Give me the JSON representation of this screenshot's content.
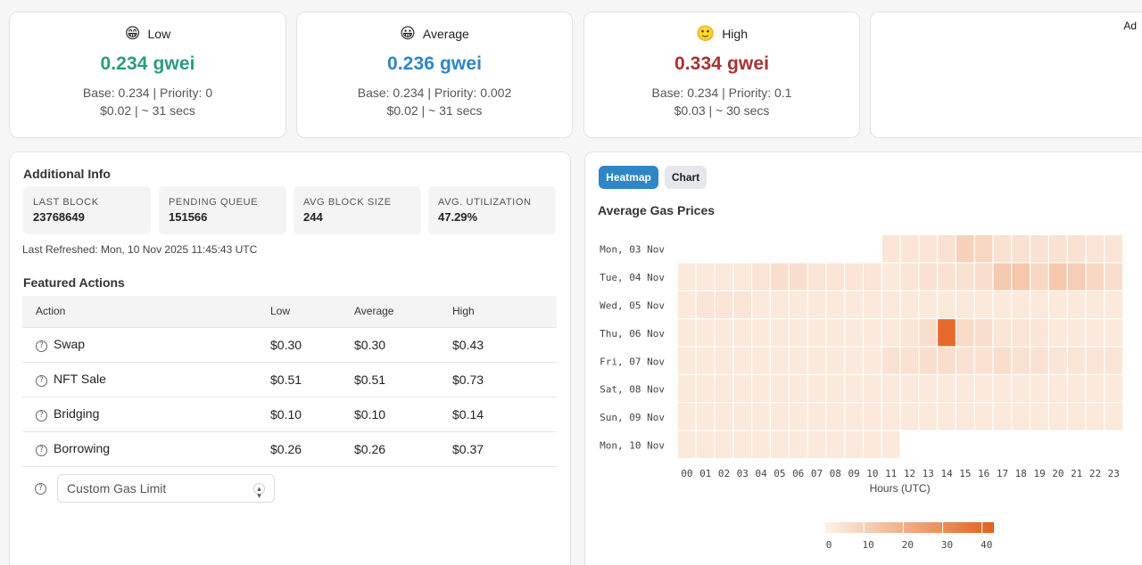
{
  "ad_label": "Ad",
  "gas_cards": [
    {
      "emoji": "😁",
      "label": "Low",
      "price": "0.234 gwei",
      "color": "#2a9c7c",
      "base_priority": "Base: 0.234 | Priority: 0",
      "cost_time": "$0.02 | ~ 31 secs"
    },
    {
      "emoji": "😀",
      "label": "Average",
      "price": "0.236 gwei",
      "color": "#2f86c6",
      "base_priority": "Base: 0.234 | Priority: 0.002",
      "cost_time": "$0.02 | ~ 31 secs"
    },
    {
      "emoji": "🙂",
      "label": "High",
      "price": "0.334 gwei",
      "color": "#a83232",
      "base_priority": "Base: 0.234 | Priority: 0.1",
      "cost_time": "$0.03 | ~ 30 secs"
    }
  ],
  "additional_info": {
    "title": "Additional Info",
    "stats": [
      {
        "label": "Last Block",
        "value": "23768649"
      },
      {
        "label": "Pending Queue",
        "value": "151566"
      },
      {
        "label": "Avg Block Size",
        "value": "244"
      },
      {
        "label": "Avg. Utilization",
        "value": "47.29%"
      }
    ],
    "last_refreshed": "Last Refreshed: Mon, 10 Nov 2025 11:45:43 UTC"
  },
  "featured_actions": {
    "title": "Featured Actions",
    "headers": [
      "Action",
      "Low",
      "Average",
      "High"
    ],
    "rows": [
      {
        "action": "Swap",
        "low": "$0.30",
        "average": "$0.30",
        "high": "$0.43"
      },
      {
        "action": "NFT Sale",
        "low": "$0.51",
        "average": "$0.51",
        "high": "$0.73"
      },
      {
        "action": "Bridging",
        "low": "$0.10",
        "average": "$0.10",
        "high": "$0.14"
      },
      {
        "action": "Borrowing",
        "low": "$0.26",
        "average": "$0.26",
        "high": "$0.37"
      }
    ],
    "custom_gas_placeholder": "Custom Gas Limit",
    "help_icon": "question-circle-icon"
  },
  "tabs": {
    "heatmap": "Heatmap",
    "chart": "Chart",
    "active": "Heatmap"
  },
  "chart_data": {
    "type": "heatmap",
    "title": "Average Gas Prices",
    "xlabel": "Hours (UTC)",
    "x": [
      "00",
      "01",
      "02",
      "03",
      "04",
      "05",
      "06",
      "07",
      "08",
      "09",
      "10",
      "11",
      "12",
      "13",
      "14",
      "15",
      "16",
      "17",
      "18",
      "19",
      "20",
      "21",
      "22",
      "23"
    ],
    "y": [
      "Mon, 03 Nov",
      "Tue, 04 Nov",
      "Wed, 05 Nov",
      "Thu, 06 Nov",
      "Fri, 07 Nov",
      "Sat, 08 Nov",
      "Sun, 09 Nov",
      "Mon, 10 Nov"
    ],
    "values": [
      [
        null,
        null,
        null,
        null,
        null,
        null,
        null,
        null,
        null,
        null,
        null,
        4,
        4,
        4,
        5,
        10,
        8,
        5,
        5,
        5,
        5,
        5,
        4,
        4
      ],
      [
        3,
        3,
        3,
        3,
        4,
        6,
        6,
        4,
        4,
        4,
        4,
        3,
        4,
        5,
        5,
        5,
        6,
        12,
        13,
        8,
        13,
        11,
        8,
        6
      ],
      [
        3,
        4,
        4,
        4,
        3,
        3,
        3,
        3,
        3,
        3,
        3,
        3,
        3,
        3,
        3,
        3,
        3,
        3,
        3,
        3,
        3,
        3,
        3,
        3
      ],
      [
        3,
        3,
        3,
        3,
        3,
        3,
        3,
        3,
        3,
        3,
        3,
        3,
        4,
        6,
        40,
        7,
        6,
        4,
        4,
        4,
        3,
        3,
        3,
        3
      ],
      [
        3,
        3,
        3,
        3,
        3,
        3,
        3,
        3,
        3,
        3,
        3,
        5,
        5,
        6,
        6,
        5,
        5,
        6,
        5,
        5,
        4,
        4,
        4,
        4
      ],
      [
        3,
        3,
        3,
        3,
        3,
        3,
        3,
        3,
        3,
        3,
        3,
        3,
        3,
        3,
        3,
        3,
        3,
        3,
        3,
        3,
        3,
        3,
        3,
        3
      ],
      [
        3,
        3,
        3,
        3,
        3,
        3,
        3,
        3,
        3,
        3,
        3,
        3,
        3,
        3,
        3,
        3,
        3,
        3,
        3,
        3,
        3,
        3,
        3,
        3
      ],
      [
        3,
        3,
        3,
        3,
        3,
        3,
        3,
        3,
        3,
        3,
        3,
        3,
        null,
        null,
        null,
        null,
        null,
        null,
        null,
        null,
        null,
        null,
        null,
        null
      ]
    ],
    "colorbar": {
      "min": 0,
      "max": 43,
      "ticks": [
        0,
        10,
        20,
        30,
        40
      ],
      "color_low": "#fdf3ea",
      "color_high": "#e4601b"
    },
    "grid": false
  }
}
